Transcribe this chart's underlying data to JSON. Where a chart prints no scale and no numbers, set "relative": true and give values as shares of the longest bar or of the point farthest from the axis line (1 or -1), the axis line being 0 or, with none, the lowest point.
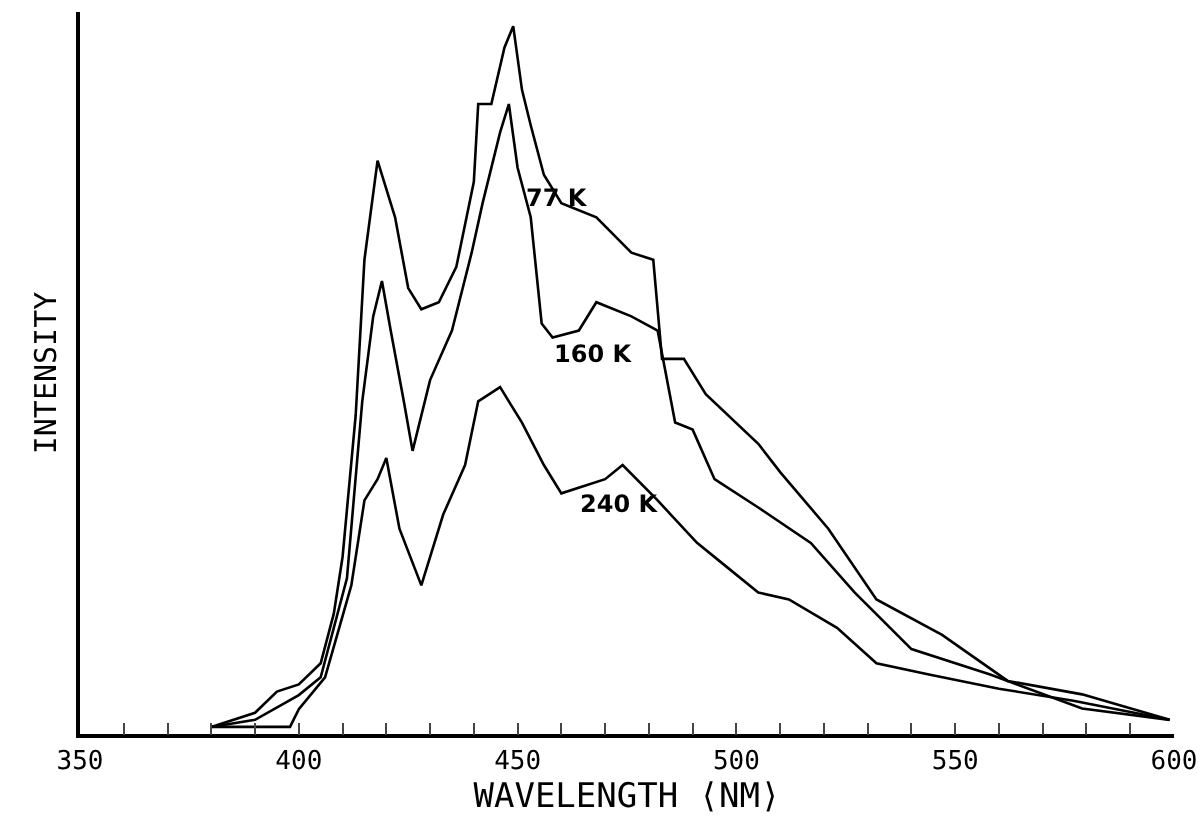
{
  "chart_data": {
    "type": "line",
    "relative": true,
    "xlabel": "WAVELENGTH ⟨NM⟩",
    "ylabel": "INTENSITY",
    "xlim": [
      350,
      600
    ],
    "xticks": [
      350,
      {
        "value": 360,
        "label": null
      },
      {
        "value": 370,
        "label": null
      },
      {
        "value": 380,
        "label": null
      },
      {
        "value": 390,
        "label": null
      },
      400,
      {
        "value": 410,
        "label": null
      },
      {
        "value": 420,
        "label": null
      },
      {
        "value": 430,
        "label": null
      },
      {
        "value": 440,
        "label": null
      },
      450,
      {
        "value": 460,
        "label": null
      },
      {
        "value": 470,
        "label": null
      },
      {
        "value": 480,
        "label": null
      },
      {
        "value": 490,
        "label": null
      },
      500,
      {
        "value": 510,
        "label": null
      },
      {
        "value": 520,
        "label": null
      },
      {
        "value": 530,
        "label": null
      },
      {
        "value": 540,
        "label": null
      },
      550,
      {
        "value": 560,
        "label": null
      },
      {
        "value": 570,
        "label": null
      },
      {
        "value": 580,
        "label": null
      },
      {
        "value": 590,
        "label": null
      },
      600
    ],
    "grid": false,
    "legend": false,
    "marker": "none",
    "line_style": "solid",
    "series": [
      {
        "name": "77 K",
        "color": "#000000",
        "x": [
          380,
          390,
          395,
          400,
          405,
          408,
          410,
          413,
          415,
          418,
          422,
          425,
          428,
          432,
          436,
          440,
          441,
          444,
          447,
          449,
          451,
          453,
          456,
          460,
          468,
          476,
          481,
          483,
          488,
          493,
          505,
          510,
          521,
          532,
          547,
          562,
          579,
          599
        ],
        "values": [
          0.01,
          0.03,
          0.06,
          0.07,
          0.1,
          0.17,
          0.25,
          0.45,
          0.67,
          0.81,
          0.73,
          0.63,
          0.6,
          0.61,
          0.66,
          0.78,
          0.89,
          0.89,
          0.97,
          1.0,
          0.91,
          0.86,
          0.79,
          0.75,
          0.73,
          0.68,
          0.67,
          0.53,
          0.53,
          0.48,
          0.41,
          0.37,
          0.29,
          0.19,
          0.14,
          0.075,
          0.056,
          0.02
        ]
      },
      {
        "name": "160 K",
        "color": "#000000",
        "x": [
          380,
          390,
          400,
          405,
          411,
          414.5,
          417,
          419,
          421,
          424,
          426,
          430,
          435,
          439.5,
          442,
          446,
          448,
          450,
          453,
          455.5,
          458,
          464,
          468,
          476,
          482,
          486,
          490,
          495,
          505,
          517,
          527,
          540,
          558,
          579,
          599
        ],
        "values": [
          0.01,
          0.02,
          0.055,
          0.08,
          0.22,
          0.47,
          0.59,
          0.64,
          0.57,
          0.47,
          0.4,
          0.5,
          0.57,
          0.68,
          0.75,
          0.85,
          0.89,
          0.8,
          0.73,
          0.58,
          0.56,
          0.57,
          0.61,
          0.59,
          0.57,
          0.44,
          0.43,
          0.36,
          0.32,
          0.27,
          0.2,
          0.12,
          0.084,
          0.036,
          0.02
        ]
      },
      {
        "name": "240 K",
        "color": "#000000",
        "x": [
          380,
          390,
          398,
          400,
          406,
          412,
          415,
          418,
          420,
          423,
          428,
          433,
          438,
          441,
          446,
          448,
          451,
          456,
          460,
          470,
          474,
          482,
          485,
          491,
          497,
          505,
          512,
          523,
          532,
          544,
          560,
          577,
          599
        ],
        "values": [
          0.01,
          0.01,
          0.01,
          0.035,
          0.08,
          0.21,
          0.33,
          0.36,
          0.39,
          0.29,
          0.21,
          0.31,
          0.38,
          0.47,
          0.49,
          0.47,
          0.44,
          0.38,
          0.34,
          0.36,
          0.38,
          0.33,
          0.31,
          0.27,
          0.24,
          0.2,
          0.19,
          0.15,
          0.1,
          0.084,
          0.064,
          0.047,
          0.02
        ]
      }
    ]
  }
}
